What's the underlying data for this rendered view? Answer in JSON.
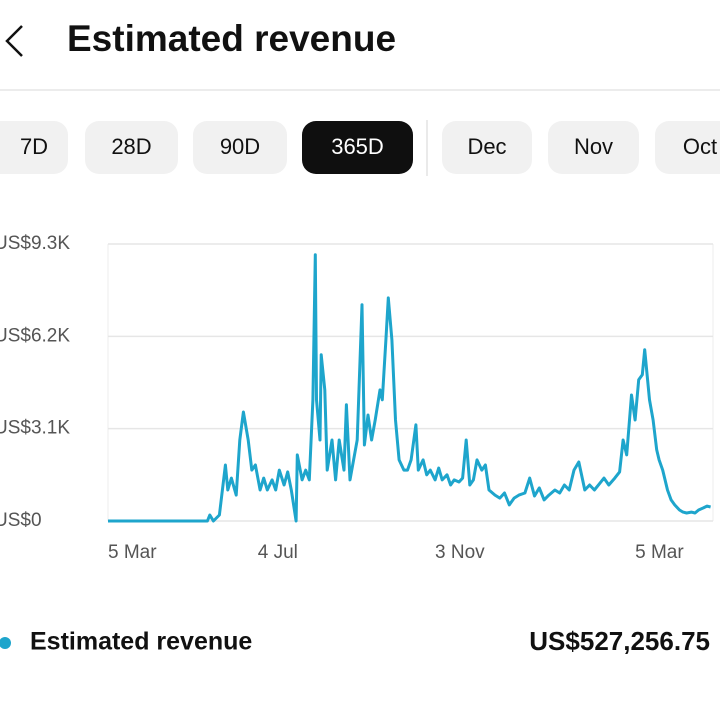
{
  "header": {
    "title": "Estimated revenue"
  },
  "tabs": [
    {
      "label": "7D",
      "selected": false
    },
    {
      "label": "28D",
      "selected": false
    },
    {
      "label": "90D",
      "selected": false
    },
    {
      "label": "365D",
      "selected": true
    },
    {
      "label": "Dec",
      "selected": false
    },
    {
      "label": "Nov",
      "selected": false
    },
    {
      "label": "Oct",
      "selected": false
    }
  ],
  "chart_data": {
    "type": "line",
    "x": [
      0,
      83,
      85,
      88,
      93,
      98,
      100,
      103,
      107,
      110,
      113,
      117,
      120,
      123,
      127,
      130,
      133,
      137,
      140,
      143,
      147,
      150,
      153,
      157,
      158,
      162,
      165,
      168,
      171,
      173,
      174,
      177,
      178,
      181,
      183,
      187,
      190,
      193,
      197,
      199,
      202,
      205,
      208,
      212,
      214,
      217,
      220,
      223,
      227,
      229,
      232,
      234,
      237,
      240,
      243,
      247,
      250,
      253,
      257,
      259,
      263,
      266,
      269,
      273,
      276,
      279,
      283,
      286,
      289,
      293,
      296,
      299,
      302,
      305,
      308,
      312,
      315,
      318,
      323,
      327,
      331,
      335,
      339,
      343,
      348,
      352,
      356,
      360,
      364,
      368,
      373,
      377,
      381,
      385,
      389,
      393,
      398,
      402,
      406,
      410,
      414,
      418,
      423,
      427,
      430,
      433,
      437,
      440,
      443,
      446,
      448,
      452,
      455,
      458,
      460,
      463,
      467,
      470,
      473,
      477,
      480,
      483,
      487,
      490,
      493,
      497,
      500,
      503
    ],
    "series": [
      {
        "name": "Estimated revenue",
        "color": "#1ea5cc",
        "values": [
          0,
          0,
          200,
          0,
          200,
          1880,
          1040,
          1440,
          870,
          2720,
          3660,
          2720,
          1710,
          1880,
          1040,
          1440,
          1040,
          1380,
          1040,
          1710,
          1210,
          1650,
          1040,
          0,
          2220,
          1380,
          1710,
          1380,
          4070,
          8940,
          4070,
          2720,
          5580,
          4400,
          1710,
          2720,
          1380,
          2720,
          1710,
          3900,
          1380,
          2050,
          2720,
          7260,
          2550,
          3560,
          2720,
          3390,
          4400,
          4070,
          6080,
          7490,
          6080,
          3390,
          2050,
          1710,
          1710,
          2050,
          3230,
          1710,
          2050,
          1550,
          1710,
          1380,
          1780,
          1380,
          1550,
          1210,
          1380,
          1310,
          1440,
          2720,
          1210,
          1380,
          2050,
          1710,
          1880,
          1040,
          870,
          770,
          940,
          540,
          770,
          870,
          940,
          1440,
          840,
          1110,
          710,
          870,
          1040,
          940,
          1210,
          1040,
          1710,
          1980,
          1040,
          1210,
          1040,
          1240,
          1440,
          1210,
          1440,
          1650,
          2720,
          2220,
          4230,
          3390,
          4740,
          4910,
          5750,
          4070,
          3390,
          2390,
          2050,
          1710,
          1040,
          710,
          540,
          370,
          300,
          270,
          300,
          270,
          370,
          440,
          500,
          470
        ]
      }
    ],
    "xlim": [
      0,
      505
    ],
    "xticks": [
      {
        "value": 0,
        "label": "5 Mar"
      },
      {
        "value": 125,
        "label": "4 Jul"
      },
      {
        "value": 273,
        "label": "3 Nov"
      },
      {
        "value": 440,
        "label": "5 Mar"
      }
    ],
    "ylim": [
      0,
      9300
    ],
    "yticks": [
      {
        "value": 0,
        "label": "US$0"
      },
      {
        "value": 3100,
        "label": "US$3.1K"
      },
      {
        "value": 6200,
        "label": "US$6.2K"
      },
      {
        "value": 9300,
        "label": "US$9.3K"
      }
    ],
    "grid": true
  },
  "summary": {
    "total": "US$527,256.75"
  }
}
